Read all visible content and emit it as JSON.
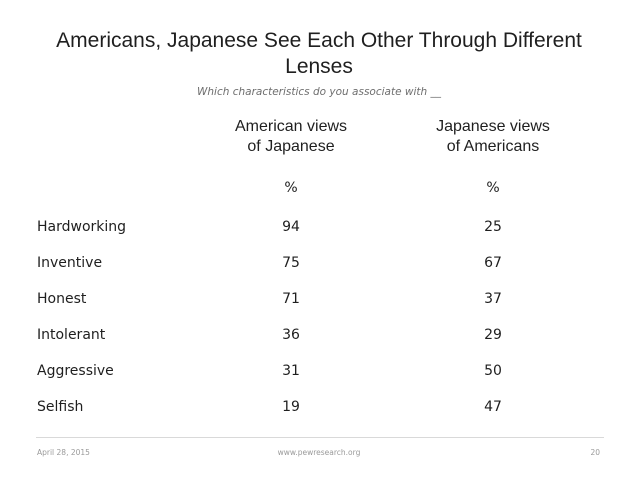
{
  "title": "Americans, Japanese See Each Other Through Different Lenses",
  "subtitle": "Which characteristics do you associate with __",
  "chart_data": {
    "type": "table",
    "title": "Americans, Japanese See Each Other Through Different Lenses",
    "subtitle": "Which characteristics do you associate with __",
    "columns": [
      {
        "name": "American views of Japanese",
        "unit": "%"
      },
      {
        "name": "Japanese views of Americans",
        "unit": "%"
      }
    ],
    "rows": [
      {
        "label": "Hardworking",
        "american_views": 94,
        "japanese_views": 25
      },
      {
        "label": "Inventive",
        "american_views": 75,
        "japanese_views": 67
      },
      {
        "label": "Honest",
        "american_views": 71,
        "japanese_views": 37
      },
      {
        "label": "Intolerant",
        "american_views": 36,
        "japanese_views": 29
      },
      {
        "label": "Aggressive",
        "american_views": 31,
        "japanese_views": 50
      },
      {
        "label": "Selfish",
        "american_views": 19,
        "japanese_views": 47
      }
    ]
  },
  "headers": {
    "american_line1": "American views",
    "american_line2": "of Japanese",
    "japanese_line1": "Japanese views",
    "japanese_line2": "of Americans",
    "unit_american": "%",
    "unit_japanese": "%"
  },
  "footer": {
    "date": "April 28, 2015",
    "website": "www.pewresearch.org",
    "page_number": "20"
  }
}
